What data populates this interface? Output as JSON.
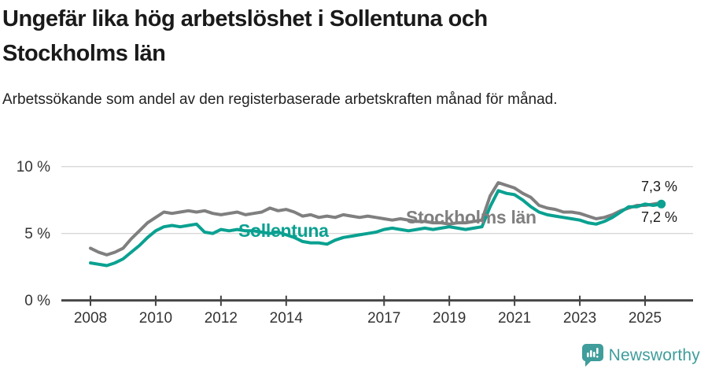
{
  "header": {
    "title": "Ungefär lika hög arbetslöshet i Sollentuna och Stockholms län",
    "subtitle": "Arbetssökande som andel av den registerbaserade arbetskraften månad för månad."
  },
  "chart_data": {
    "type": "line",
    "title": "Ungefär lika hög arbetslöshet i Sollentuna och Stockholms län",
    "subtitle": "Arbetssökande som andel av den registerbaserade arbetskraften månad för månad.",
    "xlabel": "",
    "ylabel": "",
    "ylim": [
      0,
      10
    ],
    "grid": "horizontal",
    "legend": "inline-line-labels",
    "yticks": [
      {
        "value": 0,
        "label": "0 %"
      },
      {
        "value": 5,
        "label": "5 %"
      },
      {
        "value": 10,
        "label": "10 %"
      }
    ],
    "xticks": [
      {
        "value": 2008,
        "label": "2008"
      },
      {
        "value": 2010,
        "label": "2010"
      },
      {
        "value": 2012,
        "label": "2012"
      },
      {
        "value": 2014,
        "label": "2014"
      },
      {
        "value": 2017,
        "label": "2017"
      },
      {
        "value": 2019,
        "label": "2019"
      },
      {
        "value": 2021,
        "label": "2021"
      },
      {
        "value": 2023,
        "label": "2023"
      },
      {
        "value": 2025,
        "label": "2025"
      }
    ],
    "x": [
      2008,
      2008.25,
      2008.5,
      2008.75,
      2009,
      2009.25,
      2009.5,
      2009.75,
      2010,
      2010.25,
      2010.5,
      2010.75,
      2011,
      2011.25,
      2011.5,
      2011.75,
      2012,
      2012.25,
      2012.5,
      2012.75,
      2013,
      2013.25,
      2013.5,
      2013.75,
      2014,
      2014.25,
      2014.5,
      2014.75,
      2015,
      2015.25,
      2015.5,
      2015.75,
      2016,
      2016.25,
      2016.5,
      2016.75,
      2017,
      2017.25,
      2017.5,
      2017.75,
      2018,
      2018.25,
      2018.5,
      2018.75,
      2019,
      2019.25,
      2019.5,
      2019.75,
      2020,
      2020.25,
      2020.5,
      2020.75,
      2021,
      2021.25,
      2021.5,
      2021.75,
      2022,
      2022.25,
      2022.5,
      2022.75,
      2023,
      2023.25,
      2023.5,
      2023.75,
      2024,
      2024.25,
      2024.5,
      2024.75,
      2025,
      2025.25,
      2025.5
    ],
    "series": [
      {
        "name": "Stockholms län",
        "color": "#7f7f7f",
        "end_label": "7,3 %",
        "end_dot": false,
        "values": [
          3.9,
          3.6,
          3.4,
          3.6,
          3.9,
          4.6,
          5.2,
          5.8,
          6.2,
          6.6,
          6.5,
          6.6,
          6.7,
          6.6,
          6.7,
          6.5,
          6.4,
          6.5,
          6.6,
          6.4,
          6.5,
          6.6,
          6.9,
          6.7,
          6.8,
          6.6,
          6.3,
          6.4,
          6.2,
          6.3,
          6.2,
          6.4,
          6.3,
          6.2,
          6.3,
          6.2,
          6.1,
          6.0,
          6.1,
          6.0,
          5.9,
          5.9,
          5.8,
          5.8,
          5.7,
          5.8,
          5.8,
          5.9,
          6.0,
          7.8,
          8.8,
          8.6,
          8.4,
          8.0,
          7.7,
          7.1,
          6.9,
          6.8,
          6.6,
          6.6,
          6.5,
          6.3,
          6.1,
          6.2,
          6.4,
          6.7,
          6.9,
          7.1,
          7.1,
          7.2,
          7.3
        ]
      },
      {
        "name": "Sollentuna",
        "color": "#0aa191",
        "end_label": "7,2 %",
        "end_dot": true,
        "values": [
          2.8,
          2.7,
          2.6,
          2.8,
          3.1,
          3.6,
          4.1,
          4.7,
          5.2,
          5.5,
          5.6,
          5.5,
          5.6,
          5.7,
          5.1,
          5.0,
          5.3,
          5.2,
          5.3,
          5.2,
          5.2,
          5.1,
          5.0,
          5.1,
          4.9,
          4.7,
          4.4,
          4.3,
          4.3,
          4.2,
          4.5,
          4.7,
          4.8,
          4.9,
          5.0,
          5.1,
          5.3,
          5.4,
          5.3,
          5.2,
          5.3,
          5.4,
          5.3,
          5.4,
          5.5,
          5.4,
          5.3,
          5.4,
          5.5,
          7.0,
          8.2,
          8.0,
          7.9,
          7.5,
          7.0,
          6.6,
          6.4,
          6.3,
          6.2,
          6.1,
          6.0,
          5.8,
          5.7,
          5.9,
          6.2,
          6.6,
          7.0,
          7.0,
          7.2,
          7.1,
          7.2
        ]
      }
    ]
  },
  "style": {
    "gridline_color": "#d8d8d8",
    "axis_color": "#444444",
    "tick_label_color": "#333333"
  },
  "footer": {
    "brand": "Newsworthy",
    "brand_color": "#3f9d9b"
  }
}
